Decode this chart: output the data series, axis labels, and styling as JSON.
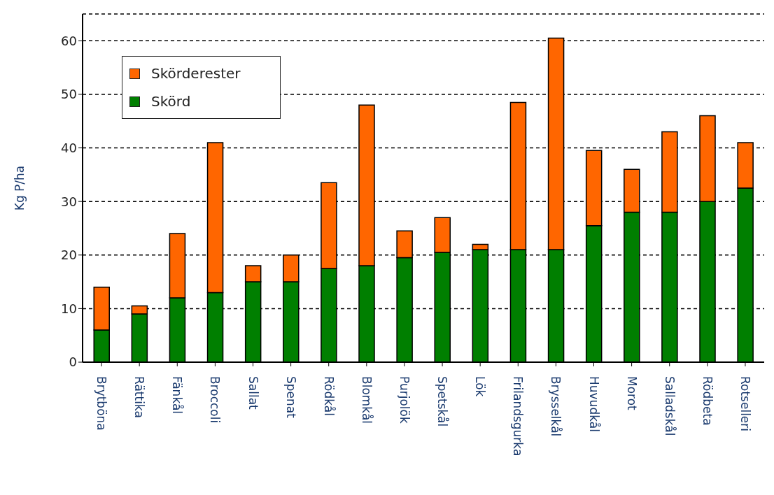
{
  "chart_data": {
    "type": "bar",
    "stacked": true,
    "ylabel": "Kg P/ha",
    "categories": [
      "Brytböna",
      "Rättika",
      "Fänkål",
      "Broccoli",
      "Sallat",
      "Spenat",
      "Rödkål",
      "Blomkål",
      "Purjolök",
      "Spetskål",
      "Lök",
      "Frilandsgurka",
      "Brysselkål",
      "Huvudkål",
      "Morot",
      "Salladskål",
      "Rödbeta",
      "Rotselleri"
    ],
    "series": [
      {
        "name": "Skörd",
        "color": "#007f00",
        "values": [
          6,
          9,
          12,
          13,
          15,
          15,
          17.5,
          18,
          19.5,
          20.5,
          21,
          21,
          21,
          25.5,
          28,
          28,
          30,
          32.5
        ]
      },
      {
        "name": "Skörderester",
        "color": "#ff6600",
        "values": [
          8,
          1.5,
          12,
          28,
          3,
          5,
          16,
          30,
          5,
          6.5,
          1,
          27.5,
          39.5,
          14,
          8,
          15,
          16,
          8.5
        ]
      }
    ],
    "ylim": [
      0,
      65
    ],
    "yticks": [
      0,
      10,
      20,
      30,
      40,
      50,
      60
    ],
    "grid": "y",
    "legend": "top left"
  }
}
